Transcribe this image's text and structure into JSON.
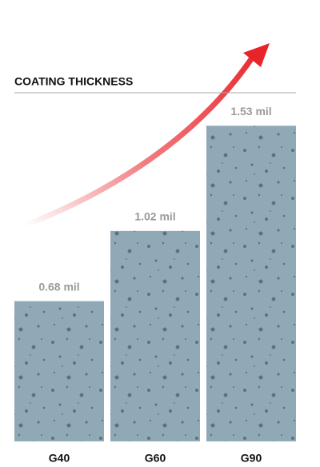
{
  "chart_data": {
    "type": "bar",
    "title": "COATING THICKNESS",
    "categories": [
      "G40",
      "G60",
      "G90"
    ],
    "values": [
      0.68,
      1.02,
      1.53
    ],
    "value_labels": [
      "0.68 mil",
      "1.02 mil",
      "1.53 mil"
    ],
    "color": "#90a9b6"
  }
}
